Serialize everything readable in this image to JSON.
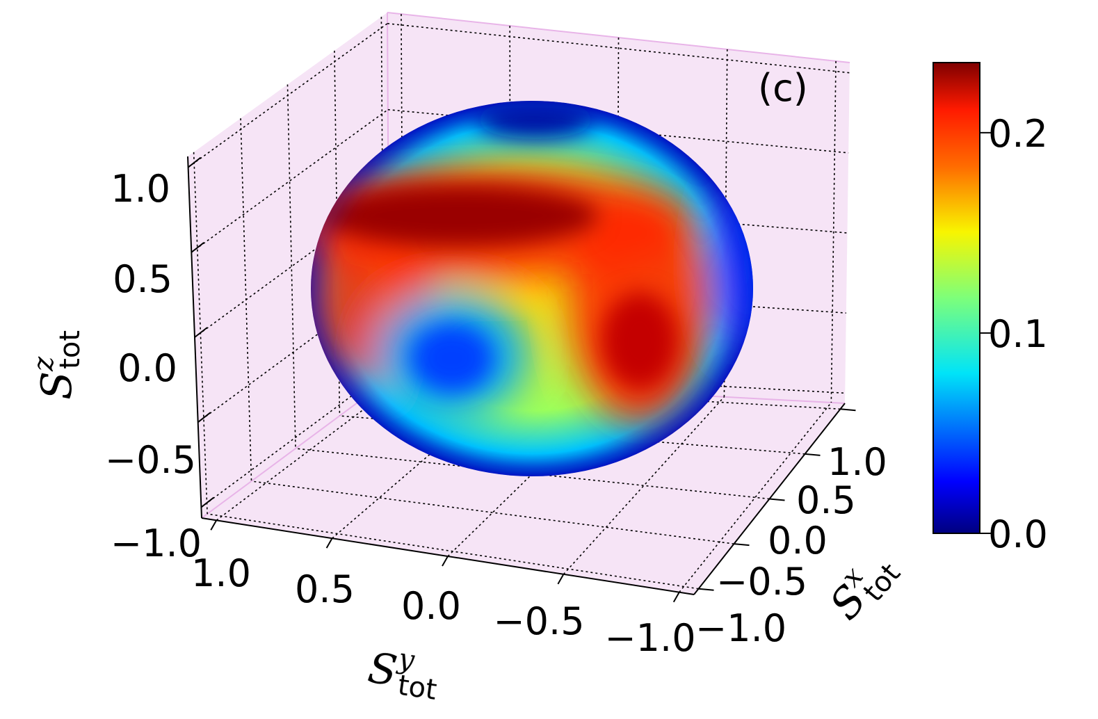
{
  "chart_data": {
    "type": "surface-3d",
    "panel_label": "(c)",
    "axes": {
      "x": {
        "label_main": "S",
        "label_sup": "x",
        "label_sub": "tot",
        "ticks": [
          "−1.0",
          "−0.5",
          "0.0",
          "0.5",
          "1.0"
        ],
        "lim": [
          -1.0,
          1.0
        ]
      },
      "y": {
        "label_main": "S",
        "label_sup": "y",
        "label_sub": "tot",
        "ticks": [
          "1.0",
          "0.5",
          "0.0",
          "−0.5",
          "−1.0"
        ],
        "lim": [
          -1.0,
          1.0
        ]
      },
      "z": {
        "label_main": "S",
        "label_sup": "z",
        "label_sub": "tot",
        "ticks": [
          "−1.0",
          "−0.5",
          "0.0",
          "0.5",
          "1.0"
        ],
        "lim": [
          -1.0,
          1.0
        ]
      }
    },
    "surface": "unit sphere colored by distribution value",
    "colorbar": {
      "colormap": "jet",
      "range": [
        0.0,
        0.235
      ],
      "ticks": [
        "0.0",
        "0.1",
        "0.2"
      ],
      "tick_values": [
        0.0,
        0.1,
        0.2
      ]
    },
    "pane_color": "#f6e4f6",
    "grid": true
  }
}
